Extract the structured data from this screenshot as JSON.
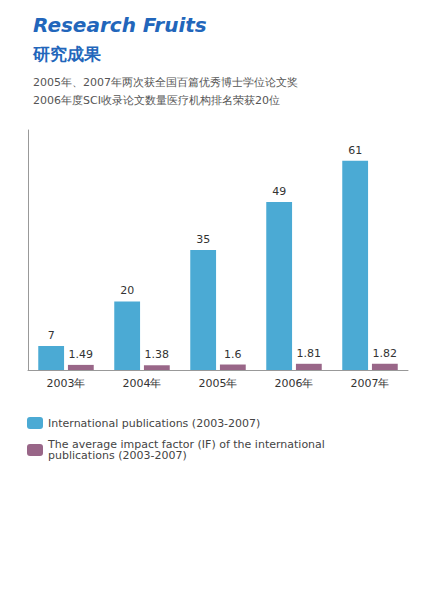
{
  "chart_data": {
    "type": "bar",
    "title": "Research Fruits",
    "subtitle": "研究成果",
    "annotations": [
      "2005年、2007年两次获全国百篇优秀博士学位论文奖",
      "2006年度SCI收录论文数量医疗机构排名荣获20位"
    ],
    "categories": [
      "2003年",
      "2004年",
      "2005年",
      "2006年",
      "2007年"
    ],
    "series": [
      {
        "name": "International publications (2003-2007)",
        "color": "#4baad4",
        "values": [
          7,
          20,
          35,
          49,
          61
        ]
      },
      {
        "name": "The average impact factor (IF) of the international publications (2003-2007)",
        "color": "#996688",
        "values": [
          1.49,
          1.38,
          1.6,
          1.81,
          1.82
        ]
      }
    ],
    "ylim": [
      0,
      70
    ],
    "grid": false,
    "legend": "bottom",
    "data_labels": true,
    "tick_labels": "x"
  }
}
